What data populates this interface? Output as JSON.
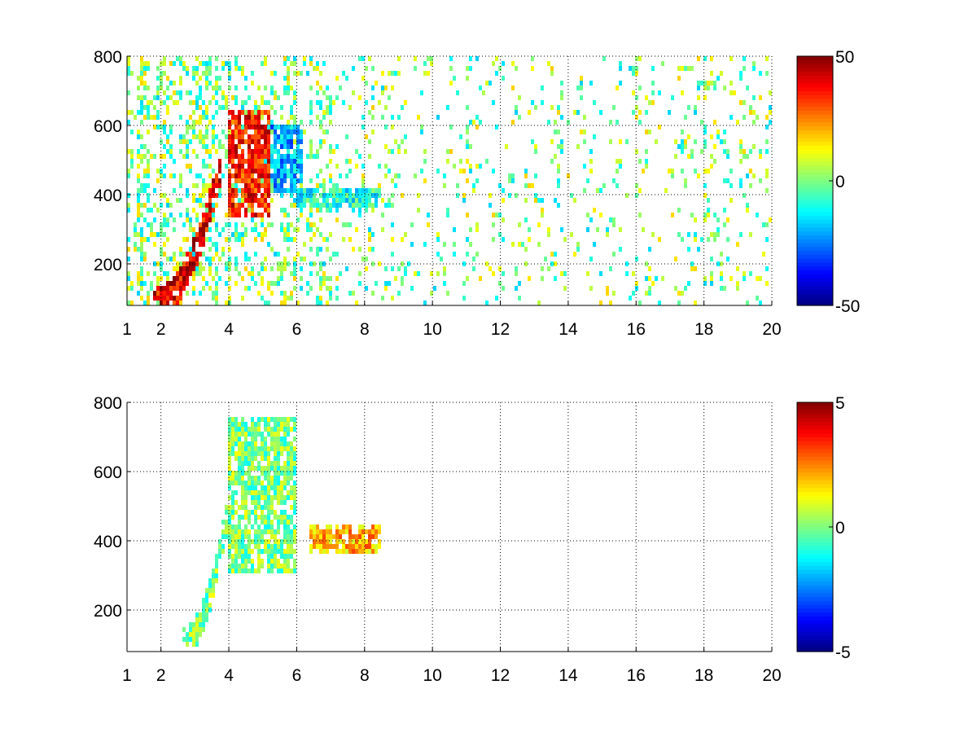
{
  "chart_data": [
    {
      "type": "heatmap",
      "title": "",
      "xlabel": "",
      "ylabel": "",
      "xlim": [
        1,
        20
      ],
      "ylim": [
        80,
        800
      ],
      "x_tick_labels": [
        "1",
        "2",
        "4",
        "6",
        "8",
        "10",
        "12",
        "14",
        "16",
        "18",
        "20"
      ],
      "x_ticks": [
        1,
        2,
        4,
        6,
        8,
        10,
        12,
        14,
        16,
        18,
        20
      ],
      "y_tick_labels": [
        "200",
        "400",
        "600",
        "800"
      ],
      "y_ticks": [
        200,
        400,
        600,
        800
      ],
      "grid": true,
      "colormap": "jet",
      "colorbar": {
        "min": -50,
        "max": 50,
        "tick_labels": [
          "50",
          "0",
          "-50"
        ],
        "ticks": [
          50,
          0,
          -50
        ]
      },
      "features": [
        {
          "x": [
            1.8,
            3.8
          ],
          "y": [
            80,
            500
          ],
          "value": 40,
          "note": "ridge"
        },
        {
          "x": [
            4.0,
            5.2
          ],
          "y": [
            330,
            650
          ],
          "value": 35,
          "note": "hot core"
        },
        {
          "x": [
            5.2,
            6.2
          ],
          "y": [
            400,
            600
          ],
          "value": -20,
          "note": "cool patch"
        },
        {
          "x": [
            6.0,
            8.5
          ],
          "y": [
            360,
            420
          ],
          "value": -10,
          "note": "streak"
        }
      ]
    },
    {
      "type": "heatmap",
      "title": "",
      "xlabel": "",
      "ylabel": "",
      "xlim": [
        1,
        20
      ],
      "ylim": [
        80,
        800
      ],
      "x_tick_labels": [
        "1",
        "2",
        "4",
        "6",
        "8",
        "10",
        "12",
        "14",
        "16",
        "18",
        "20"
      ],
      "x_ticks": [
        1,
        2,
        4,
        6,
        8,
        10,
        12,
        14,
        16,
        18,
        20
      ],
      "y_tick_labels": [
        "200",
        "400",
        "600",
        "800"
      ],
      "y_ticks": [
        200,
        400,
        600,
        800
      ],
      "grid": true,
      "colormap": "jet",
      "colorbar": {
        "min": -5,
        "max": 5,
        "tick_labels": [
          "5",
          "0",
          "-5"
        ],
        "ticks": [
          5,
          0,
          -5
        ]
      },
      "features": [
        {
          "x": [
            2.6,
            4.0
          ],
          "y": [
            100,
            500
          ],
          "value": 0,
          "note": "ridge"
        },
        {
          "x": [
            4.0,
            6.0
          ],
          "y": [
            300,
            760
          ],
          "value": 0,
          "note": "core"
        },
        {
          "x": [
            6.4,
            8.5
          ],
          "y": [
            360,
            440
          ],
          "value": 2,
          "note": "streak"
        }
      ]
    }
  ]
}
